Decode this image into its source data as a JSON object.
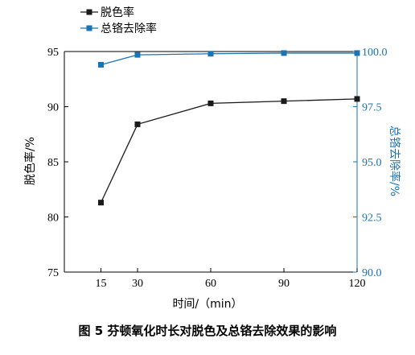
{
  "chart_data": {
    "type": "line",
    "x": [
      15,
      30,
      60,
      90,
      120
    ],
    "xlabel": "时间/（min）",
    "xlim": [
      0,
      120
    ],
    "xticks": [
      15,
      30,
      60,
      90,
      120
    ],
    "series": [
      {
        "name": "脱色率",
        "axis": "left",
        "values": [
          81.3,
          88.4,
          90.3,
          90.5,
          90.7
        ],
        "color": "#1a1a1a",
        "marker": "square"
      },
      {
        "name": "总铬去除率",
        "axis": "right",
        "values": [
          99.4,
          99.85,
          99.9,
          99.93,
          99.93
        ],
        "color": "#1a73b3",
        "marker": "square"
      }
    ],
    "y_left": {
      "label": "脱色率/%",
      "ylim": [
        75,
        95
      ],
      "ticks": [
        "75",
        "80",
        "85",
        "90",
        "95"
      ],
      "tick_values": [
        75,
        80,
        85,
        90,
        95
      ]
    },
    "y_right": {
      "label": "总铬去除率/%",
      "ylim": [
        90,
        100
      ],
      "ticks": [
        "90.0",
        "92.5",
        "95.0",
        "97.5",
        "100.0"
      ],
      "tick_values": [
        90,
        92.5,
        95,
        97.5,
        100
      ],
      "color": "#1a73b3"
    },
    "legend_position": "top-left",
    "grid": false,
    "caption": "图 5 芬顿氧化时长对脱色及总铬去除效果的影响"
  }
}
